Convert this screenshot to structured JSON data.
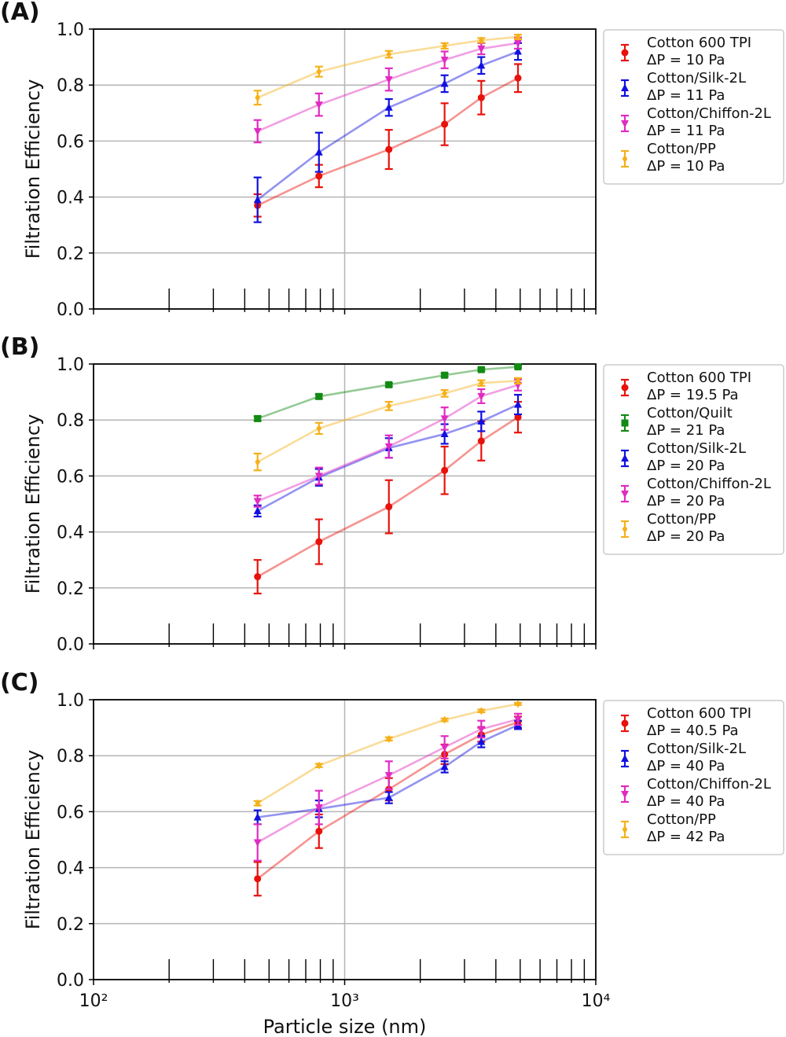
{
  "chart_data": [
    {
      "type": "line",
      "panel_label": "(A)",
      "ylabel": "Filtration Efficiency",
      "xlabel": "",
      "xscale": "log",
      "xlim": [
        100,
        10000
      ],
      "ylim": [
        0,
        1
      ],
      "yticks": [
        "0.0",
        "0.2",
        "0.4",
        "0.6",
        "0.8",
        "1.0"
      ],
      "grid": true,
      "legend_position": "outside-right",
      "series": [
        {
          "name": "Cotton 600 TPI",
          "dp": "ΔP = 10 Pa",
          "color": "#e8120c",
          "marker": "circle",
          "x": [
            450,
            790,
            1500,
            2500,
            3500,
            4900
          ],
          "y": [
            0.37,
            0.475,
            0.57,
            0.66,
            0.755,
            0.825
          ],
          "err": [
            0.04,
            0.04,
            0.07,
            0.075,
            0.06,
            0.05
          ]
        },
        {
          "name": "Cotton/Silk-2L",
          "dp": "ΔP = 11 Pa",
          "color": "#1010e0",
          "marker": "triangle-up",
          "x": [
            450,
            790,
            1500,
            2500,
            3500,
            4900
          ],
          "y": [
            0.39,
            0.56,
            0.72,
            0.805,
            0.87,
            0.92
          ],
          "err": [
            0.08,
            0.07,
            0.03,
            0.03,
            0.03,
            0.03
          ]
        },
        {
          "name": "Cotton/Chiffon-2L",
          "dp": "ΔP = 11 Pa",
          "color": "#e02bc2",
          "marker": "triangle-down",
          "x": [
            450,
            790,
            1500,
            2500,
            3500,
            4900
          ],
          "y": [
            0.635,
            0.73,
            0.82,
            0.89,
            0.93,
            0.95
          ],
          "err": [
            0.04,
            0.04,
            0.04,
            0.03,
            0.02,
            0.02
          ]
        },
        {
          "name": "Cotton/PP",
          "dp": "ΔP = 10 Pa",
          "color": "#f5b11a",
          "marker": "diamond",
          "x": [
            450,
            790,
            1500,
            2500,
            3500,
            4900
          ],
          "y": [
            0.755,
            0.848,
            0.91,
            0.94,
            0.96,
            0.972
          ],
          "err": [
            0.025,
            0.018,
            0.012,
            0.01,
            0.008,
            0.008
          ]
        }
      ]
    },
    {
      "type": "line",
      "panel_label": "(B)",
      "ylabel": "Filtration Efficiency",
      "xlabel": "",
      "xscale": "log",
      "xlim": [
        100,
        10000
      ],
      "ylim": [
        0,
        1
      ],
      "yticks": [
        "0.0",
        "0.2",
        "0.4",
        "0.6",
        "0.8",
        "1.0"
      ],
      "grid": true,
      "legend_position": "outside-right",
      "series": [
        {
          "name": "Cotton 600 TPI",
          "dp": "ΔP = 19.5 Pa",
          "color": "#e8120c",
          "marker": "circle",
          "x": [
            450,
            790,
            1500,
            2500,
            3500,
            4900
          ],
          "y": [
            0.24,
            0.365,
            0.49,
            0.62,
            0.725,
            0.81
          ],
          "err": [
            0.06,
            0.08,
            0.095,
            0.085,
            0.07,
            0.055
          ]
        },
        {
          "name": "Cotton/Quilt",
          "dp": "ΔP = 21 Pa",
          "color": "#138a13",
          "marker": "square",
          "x": [
            450,
            790,
            1500,
            2500,
            3500,
            4900
          ],
          "y": [
            0.805,
            0.884,
            0.926,
            0.96,
            0.98,
            0.99
          ],
          "err": [
            0.008,
            0.008,
            0.006,
            0.006,
            0.005,
            0.004
          ]
        },
        {
          "name": "Cotton/Silk-2L",
          "dp": "ΔP = 20 Pa",
          "color": "#1010e0",
          "marker": "triangle-up",
          "x": [
            450,
            790,
            1500,
            2500,
            3500,
            4900
          ],
          "y": [
            0.475,
            0.595,
            0.7,
            0.75,
            0.795,
            0.855
          ],
          "err": [
            0.02,
            0.03,
            0.035,
            0.035,
            0.035,
            0.035
          ]
        },
        {
          "name": "Cotton/Chiffon-2L",
          "dp": "ΔP = 20 Pa",
          "color": "#e02bc2",
          "marker": "triangle-down",
          "x": [
            450,
            790,
            1500,
            2500,
            3500,
            4900
          ],
          "y": [
            0.51,
            0.6,
            0.705,
            0.805,
            0.885,
            0.925
          ],
          "err": [
            0.02,
            0.03,
            0.04,
            0.04,
            0.025,
            0.02
          ]
        },
        {
          "name": "Cotton/PP",
          "dp": "ΔP = 20 Pa",
          "color": "#f5b11a",
          "marker": "diamond",
          "x": [
            450,
            790,
            1500,
            2500,
            3500,
            4900
          ],
          "y": [
            0.65,
            0.77,
            0.85,
            0.895,
            0.932,
            0.94
          ],
          "err": [
            0.03,
            0.02,
            0.015,
            0.012,
            0.01,
            0.01
          ]
        }
      ]
    },
    {
      "type": "line",
      "panel_label": "(C)",
      "ylabel": "Filtration Efficiency",
      "xlabel": "Particle size (nm)",
      "xscale": "log",
      "xlim": [
        100,
        10000
      ],
      "ylim": [
        0,
        1
      ],
      "yticks": [
        "0.0",
        "0.2",
        "0.4",
        "0.6",
        "0.8",
        "1.0"
      ],
      "xticks": [
        "10²",
        "10³",
        "10⁴"
      ],
      "grid": true,
      "legend_position": "outside-right",
      "series": [
        {
          "name": "Cotton 600 TPI",
          "dp": "ΔP = 40.5 Pa",
          "color": "#e8120c",
          "marker": "circle",
          "x": [
            450,
            790,
            1500,
            2500,
            3500,
            4900
          ],
          "y": [
            0.36,
            0.53,
            0.68,
            0.805,
            0.875,
            0.92
          ],
          "err": [
            0.06,
            0.06,
            0.04,
            0.035,
            0.025,
            0.02
          ]
        },
        {
          "name": "Cotton/Silk-2L",
          "dp": "ΔP = 40 Pa",
          "color": "#1010e0",
          "marker": "triangle-up",
          "x": [
            450,
            790,
            1500,
            2500,
            3500,
            4900
          ],
          "y": [
            0.58,
            0.61,
            0.65,
            0.76,
            0.85,
            0.91
          ],
          "err": [
            0.025,
            0.03,
            0.02,
            0.02,
            0.02,
            0.015
          ]
        },
        {
          "name": "Cotton/Chiffon-2L",
          "dp": "ΔP = 40 Pa",
          "color": "#e02bc2",
          "marker": "triangle-down",
          "x": [
            450,
            790,
            1500,
            2500,
            3500,
            4900
          ],
          "y": [
            0.49,
            0.615,
            0.73,
            0.83,
            0.895,
            0.93
          ],
          "err": [
            0.065,
            0.06,
            0.05,
            0.04,
            0.03,
            0.02
          ]
        },
        {
          "name": "Cotton/PP",
          "dp": "ΔP = 42 Pa",
          "color": "#f5b11a",
          "marker": "diamond",
          "x": [
            450,
            790,
            1500,
            2500,
            3500,
            4900
          ],
          "y": [
            0.63,
            0.765,
            0.86,
            0.928,
            0.96,
            0.985
          ],
          "err": [
            0.008,
            0.006,
            0.006,
            0.005,
            0.005,
            0.004
          ]
        }
      ]
    }
  ]
}
